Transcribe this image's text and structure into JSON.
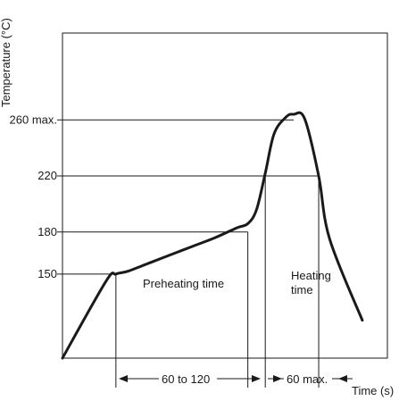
{
  "chart_data": {
    "type": "line",
    "ylabel": "Temperature (°C)",
    "xlabel": "Time (s)",
    "y_ticks": [
      {
        "value": 150,
        "label": "150"
      },
      {
        "value": 180,
        "label": "180"
      },
      {
        "value": 220,
        "label": "220"
      },
      {
        "value": 260,
        "label": "260 max."
      }
    ],
    "ylim": [
      90,
      322
    ],
    "xlim": [
      0,
      298
    ],
    "series": [
      {
        "x": [
          0,
          40,
          49,
          60,
          80,
          100,
          120,
          140,
          160,
          170,
          178,
          186,
          194,
          205,
          212,
          222,
          235,
          245,
          275
        ],
        "y": [
          90,
          145,
          150,
          152,
          158,
          164,
          170,
          176,
          183,
          186,
          196,
          222,
          250,
          262,
          264,
          261,
          220,
          175,
          117
        ]
      }
    ],
    "markers": [
      {
        "name": "preheat-start",
        "x": 49,
        "y_top": 150
      },
      {
        "name": "preheat-end",
        "x": 170,
        "y_top": 180
      },
      {
        "name": "heating-start",
        "x": 186,
        "y_top": 220
      },
      {
        "name": "heating-end",
        "x": 235,
        "y_top": 220
      }
    ],
    "annotations": {
      "preheating": "Preheating time",
      "heating_line1": "Heating",
      "heating_line2": "time",
      "preheat_range": "60 to 120",
      "heating_range": "60 max."
    }
  }
}
